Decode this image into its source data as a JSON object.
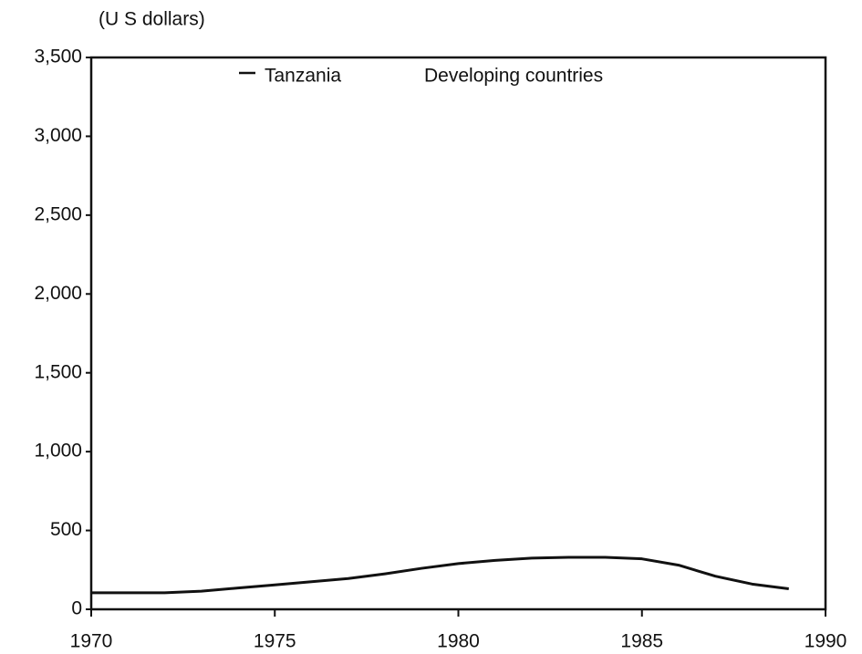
{
  "chart_data": {
    "type": "line",
    "y_label": "(U S dollars)",
    "x": [
      1970,
      1971,
      1972,
      1973,
      1974,
      1975,
      1976,
      1977,
      1978,
      1979,
      1980,
      1981,
      1982,
      1983,
      1984,
      1985,
      1986,
      1987,
      1988,
      1989
    ],
    "series": [
      {
        "name": "Tanzania",
        "color": "#111111",
        "values": [
          105,
          105,
          105,
          115,
          135,
          155,
          175,
          195,
          225,
          260,
          290,
          310,
          325,
          330,
          330,
          320,
          280,
          210,
          160,
          130
        ]
      },
      {
        "name": "Developing countries",
        "color": "#111111",
        "values": [
          null,
          null,
          null,
          null,
          null,
          null,
          null,
          null,
          null,
          null,
          null,
          null,
          null,
          null,
          null,
          null,
          null,
          null,
          null,
          null
        ]
      }
    ],
    "xlim": [
      1970,
      1990
    ],
    "xticks": [
      1970,
      1975,
      1980,
      1985,
      1990
    ],
    "ylim": [
      0,
      3500
    ],
    "yticks": [
      0,
      500,
      {
        "value": 1000,
        "label": "1,000"
      },
      {
        "value": 1500,
        "label": "1,500"
      },
      {
        "value": 2000,
        "label": "2,000"
      },
      {
        "value": 2500,
        "label": "2,500"
      },
      {
        "value": 3000,
        "label": "3,000"
      },
      {
        "value": 3500,
        "label": "3,500"
      }
    ],
    "grid": false
  }
}
